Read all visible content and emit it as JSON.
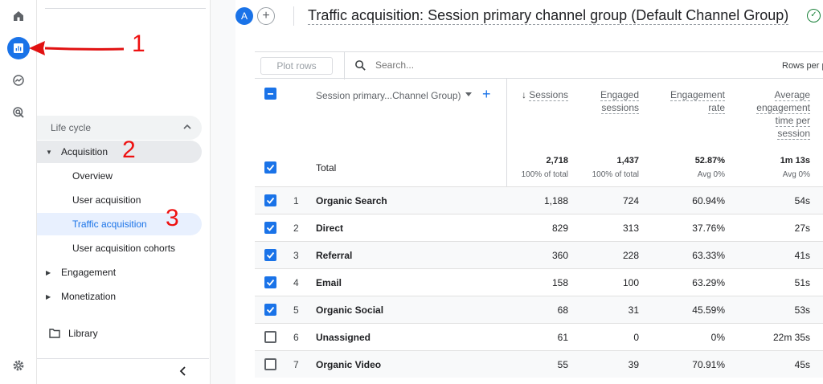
{
  "header": {
    "avatar_letter": "A",
    "add_label": "+",
    "title": "Traffic acquisition: Session primary channel group (Default Channel Group)"
  },
  "sidebar": {
    "section_label": "Life cycle",
    "acquisition_label": "Acquisition",
    "items": [
      {
        "label": "Overview"
      },
      {
        "label": "User acquisition"
      },
      {
        "label": "Traffic acquisition"
      },
      {
        "label": "User acquisition cohorts"
      }
    ],
    "engagement_label": "Engagement",
    "monetization_label": "Monetization",
    "library_label": "Library"
  },
  "toolbar": {
    "plot_rows_label": "Plot rows",
    "search_placeholder": "Search...",
    "rows_per_label": "Rows per p"
  },
  "table": {
    "dimension_header": "Session primary...Channel Group)",
    "columns": [
      {
        "label": "Sessions",
        "sort": "desc"
      },
      {
        "label_lines": [
          "Engaged",
          "sessions"
        ]
      },
      {
        "label_lines": [
          "Engagement",
          "rate"
        ]
      },
      {
        "label_lines": [
          "Average",
          "engagement",
          "time per",
          "session"
        ]
      }
    ],
    "total": {
      "label": "Total",
      "values": [
        "2,718",
        "1,437",
        "52.87%",
        "1m 13s"
      ],
      "subs": [
        "100% of total",
        "100% of total",
        "Avg 0%",
        "Avg 0%"
      ]
    },
    "rows": [
      {
        "num": "1",
        "name": "Organic Search",
        "sessions": "1,188",
        "engaged": "724",
        "rate": "60.94%",
        "time": "54s",
        "checked": true
      },
      {
        "num": "2",
        "name": "Direct",
        "sessions": "829",
        "engaged": "313",
        "rate": "37.76%",
        "time": "27s",
        "checked": true
      },
      {
        "num": "3",
        "name": "Referral",
        "sessions": "360",
        "engaged": "228",
        "rate": "63.33%",
        "time": "41s",
        "checked": true
      },
      {
        "num": "4",
        "name": "Email",
        "sessions": "158",
        "engaged": "100",
        "rate": "63.29%",
        "time": "51s",
        "checked": true
      },
      {
        "num": "5",
        "name": "Organic Social",
        "sessions": "68",
        "engaged": "31",
        "rate": "45.59%",
        "time": "53s",
        "checked": true
      },
      {
        "num": "6",
        "name": "Unassigned",
        "sessions": "61",
        "engaged": "0",
        "rate": "0%",
        "time": "22m 35s",
        "checked": false
      },
      {
        "num": "7",
        "name": "Organic Video",
        "sessions": "55",
        "engaged": "39",
        "rate": "70.91%",
        "time": "45s",
        "checked": false
      }
    ]
  },
  "annotations": [
    "1",
    "2",
    "3"
  ],
  "colors": {
    "accent": "#1a73e8",
    "annotation": "#e11111"
  }
}
